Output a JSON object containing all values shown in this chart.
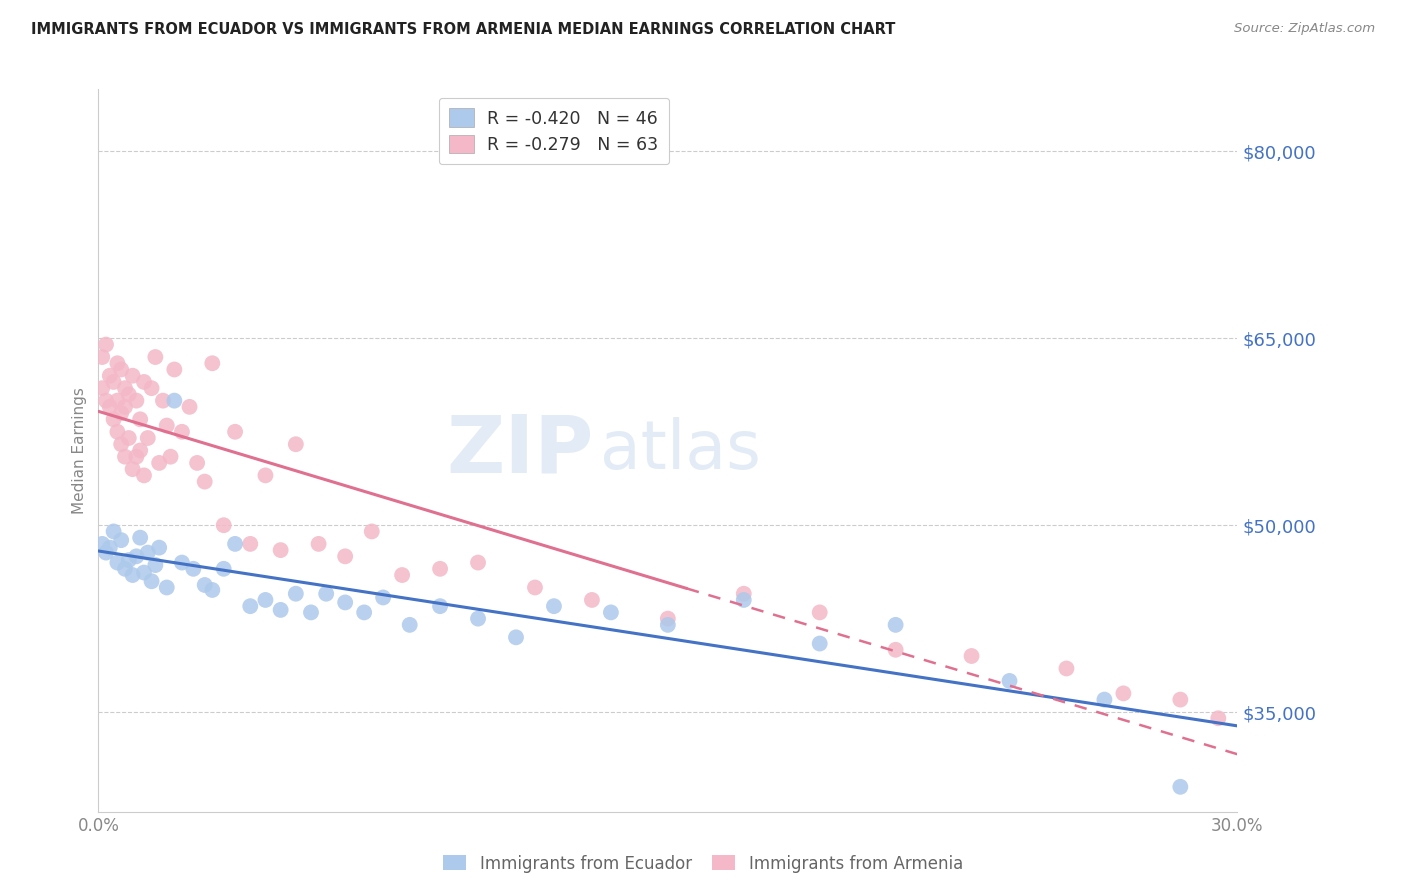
{
  "title": "IMMIGRANTS FROM ECUADOR VS IMMIGRANTS FROM ARMENIA MEDIAN EARNINGS CORRELATION CHART",
  "source": "Source: ZipAtlas.com",
  "ylabel": "Median Earnings",
  "xlim": [
    0.0,
    0.3
  ],
  "ylim": [
    27000,
    85000
  ],
  "yticks": [
    35000,
    50000,
    65000,
    80000
  ],
  "ytick_labels": [
    "$35,000",
    "$50,000",
    "$65,000",
    "$80,000"
  ],
  "xticks": [
    0.0,
    0.05,
    0.1,
    0.15,
    0.2,
    0.25,
    0.3
  ],
  "xtick_labels": [
    "0.0%",
    "",
    "",
    "",
    "",
    "",
    "30.0%"
  ],
  "watermark_zip": "ZIP",
  "watermark_atlas": "atlas",
  "ecuador_color": "#adc9eb",
  "ecuador_line_color": "#4472c4",
  "armenia_color": "#f4b8c8",
  "armenia_line_color": "#e07090",
  "axis_color": "#4472c4",
  "grid_color": "#cccccc",
  "ecuador_x": [
    0.001,
    0.002,
    0.003,
    0.004,
    0.005,
    0.006,
    0.007,
    0.008,
    0.009,
    0.01,
    0.011,
    0.012,
    0.013,
    0.014,
    0.015,
    0.016,
    0.018,
    0.02,
    0.022,
    0.025,
    0.028,
    0.03,
    0.033,
    0.036,
    0.04,
    0.044,
    0.048,
    0.052,
    0.056,
    0.06,
    0.065,
    0.07,
    0.075,
    0.082,
    0.09,
    0.1,
    0.11,
    0.12,
    0.135,
    0.15,
    0.17,
    0.19,
    0.21,
    0.24,
    0.265,
    0.285
  ],
  "ecuador_y": [
    48500,
    47800,
    48200,
    49500,
    47000,
    48800,
    46500,
    47200,
    46000,
    47500,
    49000,
    46200,
    47800,
    45500,
    46800,
    48200,
    45000,
    60000,
    47000,
    46500,
    45200,
    44800,
    46500,
    48500,
    43500,
    44000,
    43200,
    44500,
    43000,
    44500,
    43800,
    43000,
    44200,
    42000,
    43500,
    42500,
    41000,
    43500,
    43000,
    42000,
    44000,
    40500,
    42000,
    37500,
    36000,
    29000
  ],
  "armenia_x": [
    0.001,
    0.001,
    0.002,
    0.002,
    0.003,
    0.003,
    0.004,
    0.004,
    0.005,
    0.005,
    0.005,
    0.006,
    0.006,
    0.006,
    0.007,
    0.007,
    0.007,
    0.008,
    0.008,
    0.009,
    0.009,
    0.01,
    0.01,
    0.011,
    0.011,
    0.012,
    0.012,
    0.013,
    0.014,
    0.015,
    0.016,
    0.017,
    0.018,
    0.019,
    0.02,
    0.022,
    0.024,
    0.026,
    0.028,
    0.03,
    0.033,
    0.036,
    0.04,
    0.044,
    0.048,
    0.052,
    0.058,
    0.065,
    0.072,
    0.08,
    0.09,
    0.1,
    0.115,
    0.13,
    0.15,
    0.17,
    0.19,
    0.21,
    0.23,
    0.255,
    0.27,
    0.285,
    0.295
  ],
  "armenia_y": [
    61000,
    63500,
    60000,
    64500,
    59500,
    62000,
    61500,
    58500,
    60000,
    57500,
    63000,
    62500,
    59000,
    56500,
    61000,
    59500,
    55500,
    60500,
    57000,
    62000,
    54500,
    60000,
    55500,
    58500,
    56000,
    61500,
    54000,
    57000,
    61000,
    63500,
    55000,
    60000,
    58000,
    55500,
    62500,
    57500,
    59500,
    55000,
    53500,
    63000,
    50000,
    57500,
    48500,
    54000,
    48000,
    56500,
    48500,
    47500,
    49500,
    46000,
    46500,
    47000,
    45000,
    44000,
    42500,
    44500,
    43000,
    40000,
    39500,
    38500,
    36500,
    36000,
    34500
  ],
  "ecuador_legend": "R = -0.420   N = 46",
  "armenia_legend": "R = -0.279   N = 63",
  "bottom_legend_ecuador": "Immigrants from Ecuador",
  "bottom_legend_armenia": "Immigrants from Armenia"
}
